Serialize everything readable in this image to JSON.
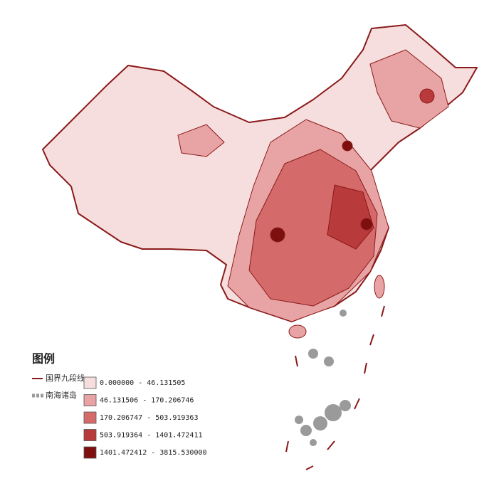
{
  "legend": {
    "title": "图例",
    "lines": [
      {
        "label": "国界九段线",
        "color": "#8b1a1a"
      },
      {
        "label": "南海诸岛",
        "color": "#9a9a9a"
      }
    ],
    "classes": [
      {
        "label": "0.000000 - 46.131505",
        "color": "#f7dede"
      },
      {
        "label": "46.131506 - 170.206746",
        "color": "#e8a4a4"
      },
      {
        "label": "170.206747 - 503.919363",
        "color": "#d46a6a"
      },
      {
        "label": "503.919364 - 1401.472411",
        "color": "#b83a3a"
      },
      {
        "label": "1401.472412 - 3815.530000",
        "color": "#7e0f0f"
      }
    ]
  }
}
